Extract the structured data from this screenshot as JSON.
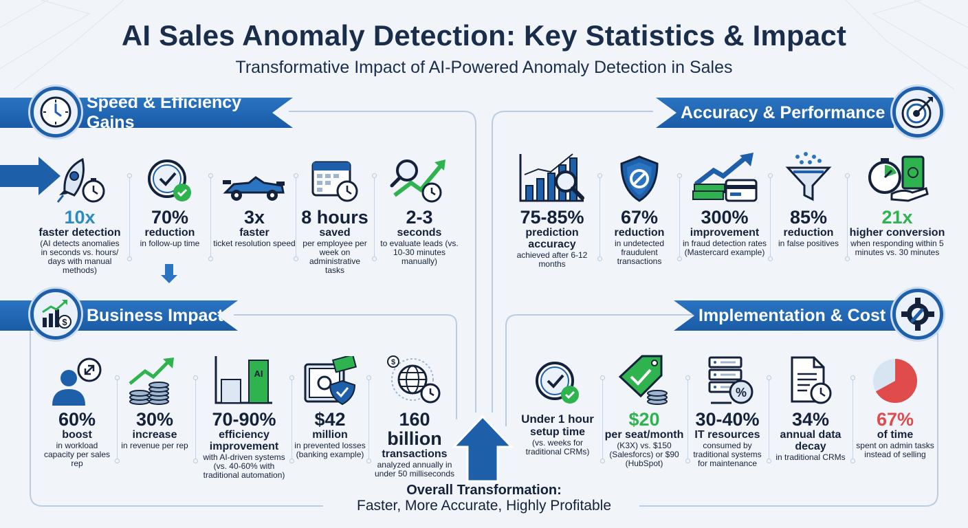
{
  "header": {
    "title": "AI Sales Anomaly Detection: Key Statistics & Impact",
    "subtitle": "Transformative Impact of AI-Powered Anomaly Detection in Sales"
  },
  "colors": {
    "blue": "#1e5fa9",
    "green": "#2eb34f",
    "red": "#e04b4b",
    "teal": "#2f8ac2",
    "navy": "#14213a"
  },
  "sections": {
    "speed": {
      "title": "Speed & Efficiency Gains",
      "icon": "clock-icon",
      "stats": [
        {
          "icon": "rocket-stopwatch-icon",
          "value": "10x",
          "label": "faster detection",
          "desc": "(AI detects anomalies in seconds vs. hours/ days with manual methods)"
        },
        {
          "icon": "clock-check-icon",
          "value": "70%",
          "label": "reduction",
          "desc": "in follow-up time"
        },
        {
          "icon": "race-car-icon",
          "value": "3x",
          "label": "faster",
          "desc": "ticket resolution speed"
        },
        {
          "icon": "calendar-clock-icon",
          "value": "8 hours",
          "label": "saved",
          "desc": "per employee per week on administrative tasks"
        },
        {
          "icon": "magnifier-trend-icon",
          "value": "2-3",
          "label": "seconds",
          "desc": "to evaluate leads (vs. 10-30 minutes manually)"
        }
      ]
    },
    "accuracy": {
      "title": "Accuracy & Performance",
      "icon": "target-icon",
      "stats": [
        {
          "icon": "bar-chart-magnifier-icon",
          "value": "75-85%",
          "label": "prediction accuracy",
          "desc": "achieved after 6-12 months"
        },
        {
          "icon": "shield-blocked-icon",
          "value": "67%",
          "label": "reduction",
          "desc": "in undetected fraudulent transactions"
        },
        {
          "icon": "money-card-trend-icon",
          "value": "300%",
          "label": "improvement",
          "desc": "in fraud detection rates (Mastercard example)"
        },
        {
          "icon": "funnel-icon",
          "value": "85%",
          "label": "reduction",
          "desc": "in false positives"
        },
        {
          "icon": "stopwatch-money-icon",
          "value": "21x",
          "label": "higher conversion",
          "desc": "when responding within 5 minutes vs. 30 minutes"
        }
      ]
    },
    "business": {
      "title": "Business Impact",
      "icon": "growth-chart-icon",
      "stats": [
        {
          "icon": "person-expand-icon",
          "value": "60%",
          "label": "boost",
          "desc": "in workload capacity per sales rep"
        },
        {
          "icon": "coins-growth-icon",
          "value": "30%",
          "label": "increase",
          "desc": "in revenue per rep"
        },
        {
          "icon": "ai-bar-compare-icon",
          "value": "70-90%",
          "label": "efficiency improvement",
          "desc": "with AI-driven systems (vs. 40-60% with traditional automation)",
          "chart_text": "AI"
        },
        {
          "icon": "safe-shield-icon",
          "value": "$42",
          "label": "million",
          "desc": "in prevented losses (banking example)"
        },
        {
          "icon": "globe-stopwatch-icon",
          "value": "160 billion",
          "label": "transactions",
          "desc": "analyzed annually in under 50 milliseconds"
        }
      ]
    },
    "implementation": {
      "title": "Implementation & Cost",
      "icon": "gear-wrench-icon",
      "stats": [
        {
          "icon": "clock-check-icon",
          "value": "Under 1 hour",
          "label": "setup time",
          "desc": "(vs. weeks for traditional CRMs)"
        },
        {
          "icon": "price-tag-coins-icon",
          "value": "$20",
          "label": "per seat/month",
          "desc": "(K3X) vs. $150 (Salesforcs) or $90 (HubSpot)"
        },
        {
          "icon": "server-percent-icon",
          "value": "30-40%",
          "label": "IT resources",
          "desc": "consumed by traditional systems for maintenance"
        },
        {
          "icon": "document-clock-icon",
          "value": "34%",
          "label": "annual data decay",
          "desc": "in traditional CRMs"
        },
        {
          "icon": "pie-chart-icon",
          "value": "67%",
          "label": "of time",
          "desc": "spent on admin tasks instead of selling",
          "pie_fraction": 0.67
        }
      ]
    }
  },
  "footer": {
    "line1": "Overall Transformation:",
    "line2": "Faster, More Accurate, Highly Profitable"
  }
}
